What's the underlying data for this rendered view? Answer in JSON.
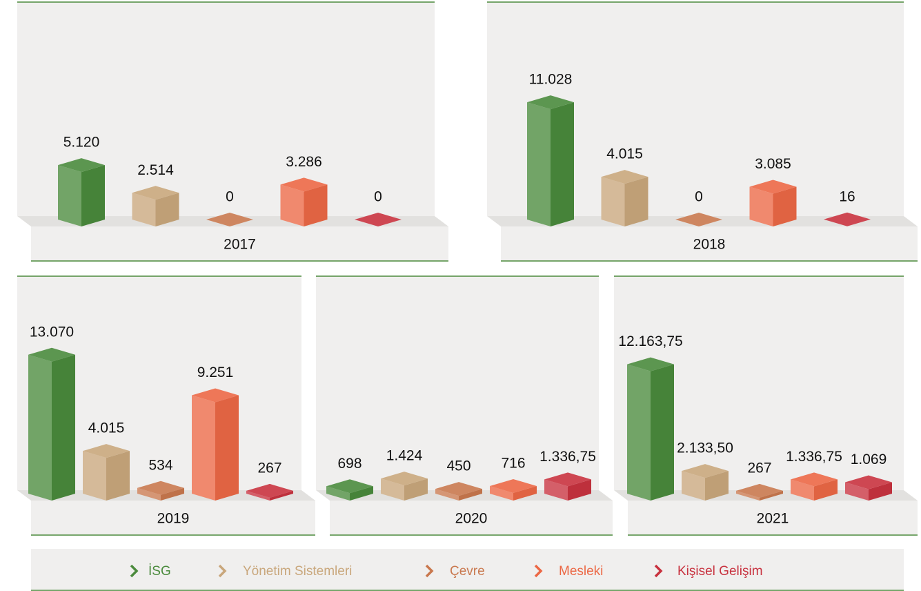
{
  "legend": [
    {
      "name": "İSG",
      "color": "#4a8a3c"
    },
    {
      "name": "Yönetim Sistemleri",
      "color": "#c9a77c"
    },
    {
      "name": "Çevre",
      "color": "#c9784e"
    },
    {
      "name": "Mesleki",
      "color": "#ec6845"
    },
    {
      "name": "Kişisel Gelişim",
      "color": "#c8323f"
    }
  ],
  "chart_data": [
    {
      "type": "bar",
      "title": "2017",
      "values": [
        5120,
        2514,
        0,
        3286,
        0
      ],
      "value_labels": [
        "5.120",
        "2.514",
        "0",
        "3.286",
        "0"
      ]
    },
    {
      "type": "bar",
      "title": "2018",
      "values": [
        11028,
        4015,
        0,
        3085,
        16
      ],
      "value_labels": [
        "11.028",
        "4.015",
        "0",
        "3.085",
        "16"
      ]
    },
    {
      "type": "bar",
      "title": "2019",
      "values": [
        13070,
        4015,
        534,
        9251,
        267
      ],
      "value_labels": [
        "13.070",
        "4.015",
        "534",
        "9.251",
        "267"
      ]
    },
    {
      "type": "bar",
      "title": "2020",
      "values": [
        698,
        1424,
        450,
        716,
        1336.75
      ],
      "value_labels": [
        "698",
        "1.424",
        "450",
        "716",
        "1.336,75"
      ]
    },
    {
      "type": "bar",
      "title": "2021",
      "values": [
        12163.75,
        2133.5,
        267,
        1336.75,
        1069
      ],
      "value_labels": [
        "12.163,75",
        "2.133,50",
        "267",
        "1.336,75",
        "1.069"
      ]
    }
  ]
}
